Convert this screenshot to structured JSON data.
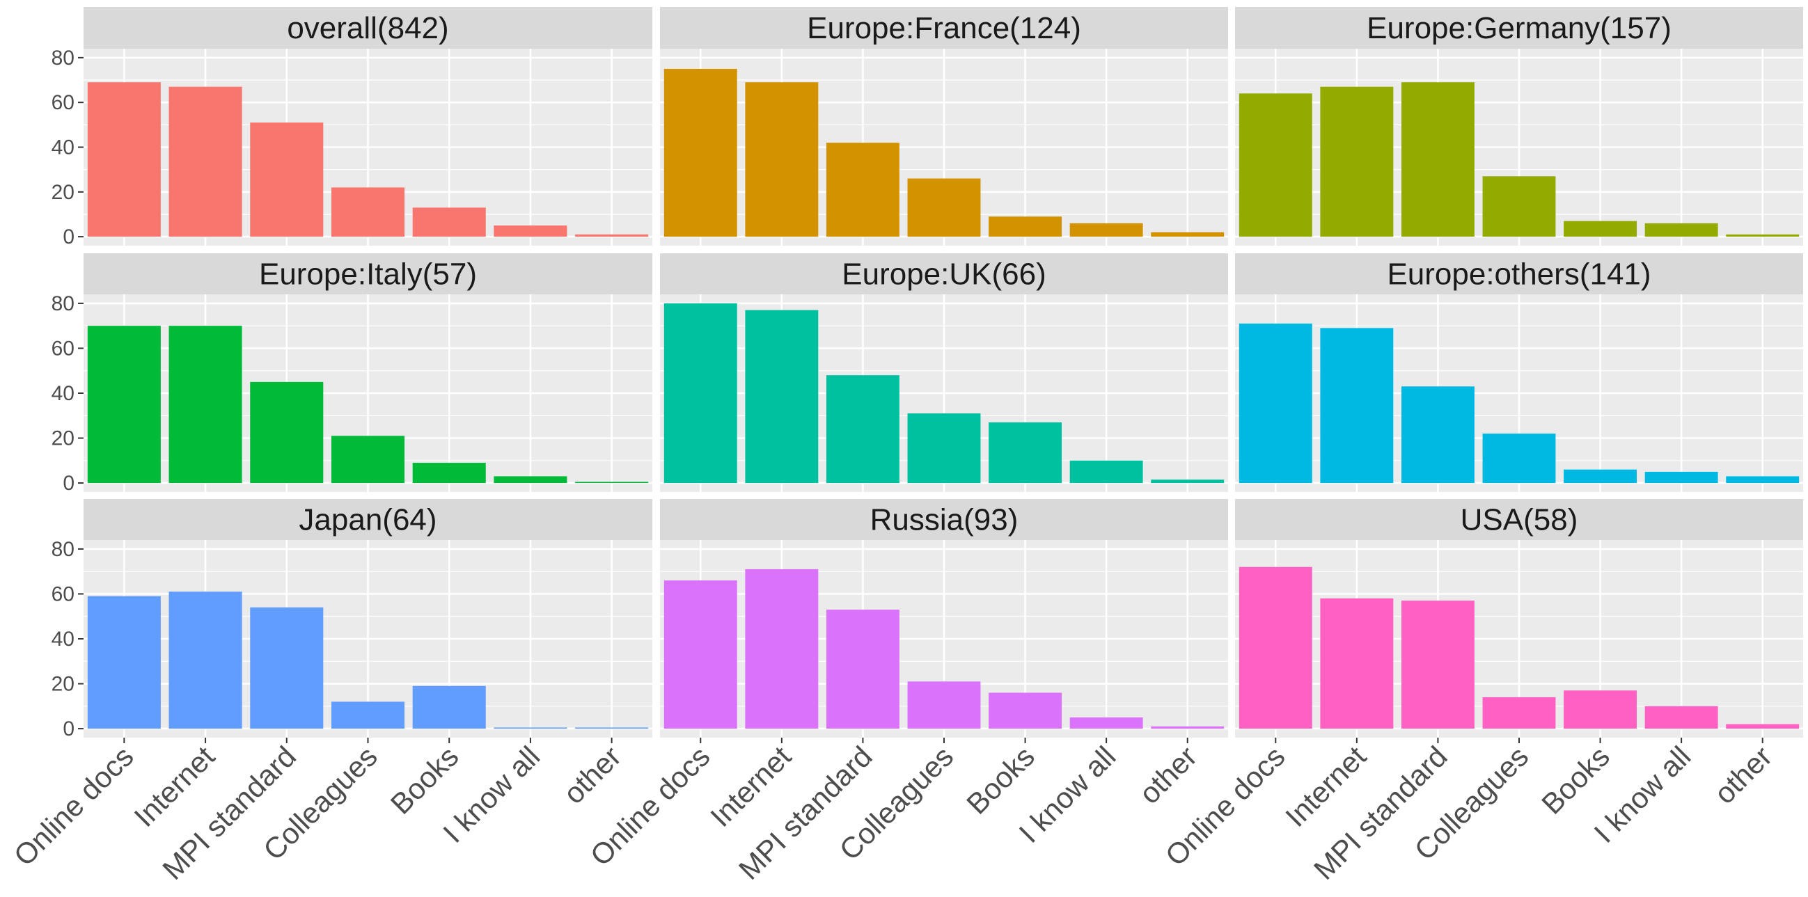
{
  "chart_data": {
    "type": "bar",
    "layout": "facet-grid 3x3",
    "categories": [
      "Online docs",
      "Internet",
      "MPI standard",
      "Colleagues",
      "Books",
      "I know all",
      "other"
    ],
    "ylim": [
      -4,
      84
    ],
    "yticks": [
      0,
      20,
      40,
      60,
      80
    ],
    "ytick_labels": [
      "0",
      "20",
      "40",
      "60",
      "80"
    ],
    "panel_background": "#EBEBEB",
    "strip_background": "#D9D9D9",
    "grid": true,
    "panels": [
      {
        "title": "overall(842)",
        "color": "#F8766D",
        "values": [
          69,
          67,
          51,
          22,
          13,
          5,
          1
        ]
      },
      {
        "title": "Europe:France(124)",
        "color": "#D39200",
        "values": [
          75,
          69,
          42,
          26,
          9,
          6,
          2
        ]
      },
      {
        "title": "Europe:Germany(157)",
        "color": "#93AA00",
        "values": [
          64,
          67,
          69,
          27,
          7,
          6,
          1
        ]
      },
      {
        "title": "Europe:Italy(57)",
        "color": "#00BA38",
        "values": [
          70,
          70,
          45,
          21,
          9,
          3,
          0.5
        ]
      },
      {
        "title": "Europe:UK(66)",
        "color": "#00C19F",
        "values": [
          80,
          77,
          48,
          31,
          27,
          10,
          1.5
        ]
      },
      {
        "title": "Europe:others(141)",
        "color": "#00B9E3",
        "values": [
          71,
          69,
          43,
          22,
          6,
          5,
          3
        ]
      },
      {
        "title": "Japan(64)",
        "color": "#619CFF",
        "values": [
          59,
          61,
          54,
          12,
          19,
          0.5,
          0.5
        ]
      },
      {
        "title": "Russia(93)",
        "color": "#DB72FB",
        "values": [
          66,
          71,
          53,
          21,
          16,
          5,
          1
        ]
      },
      {
        "title": "USA(58)",
        "color": "#FF61C3",
        "values": [
          72,
          58,
          57,
          14,
          17,
          10,
          2
        ]
      }
    ]
  }
}
